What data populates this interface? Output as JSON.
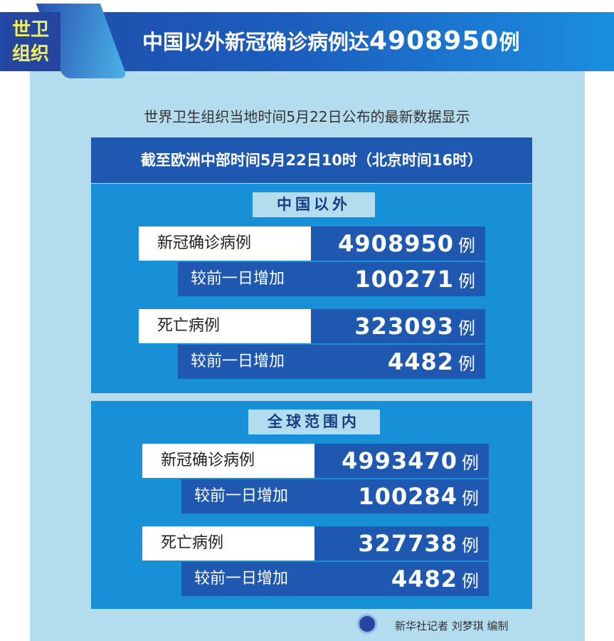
{
  "header": {
    "badge": "世卫组织",
    "badge_line1": "世卫",
    "badge_line2": "组织",
    "title_text": "中国以外新冠确诊病例达",
    "title_number": "4908950",
    "title_unit": "例"
  },
  "subtitle": "世界卫生组织当地时间5月22日公布的最新数据显示",
  "time_bar": "截至欧洲中部时间5月22日10时（北京时间16时）",
  "sections": [
    {
      "heading": "中国以外",
      "rows": [
        {
          "label": "新冠确诊病例",
          "value": "4908950",
          "unit": "例",
          "increase_label": "较前一日增加",
          "increase": "100271",
          "increase_unit": "例"
        },
        {
          "label": "死亡病例",
          "value": "323093",
          "unit": "例",
          "increase_label": "较前一日增加",
          "increase": "4482",
          "increase_unit": "例"
        }
      ]
    },
    {
      "heading": "全球范围内",
      "rows": [
        {
          "label": "新冠确诊病例",
          "value": "4993470",
          "unit": "例",
          "increase_label": "较前一日增加",
          "increase": "100284",
          "increase_unit": "例"
        },
        {
          "label": "死亡病例",
          "value": "327738",
          "unit": "例",
          "increase_label": "较前一日增加",
          "increase": "4482",
          "increase_unit": "例"
        }
      ]
    }
  ],
  "credit": "新华社记者 刘梦琪 编制",
  "colors": {
    "dark_blue": "#1e58b0",
    "mid_blue": "#1790d8",
    "light_blue": "#b3dcee",
    "badge_text": "#f3ee5a"
  }
}
